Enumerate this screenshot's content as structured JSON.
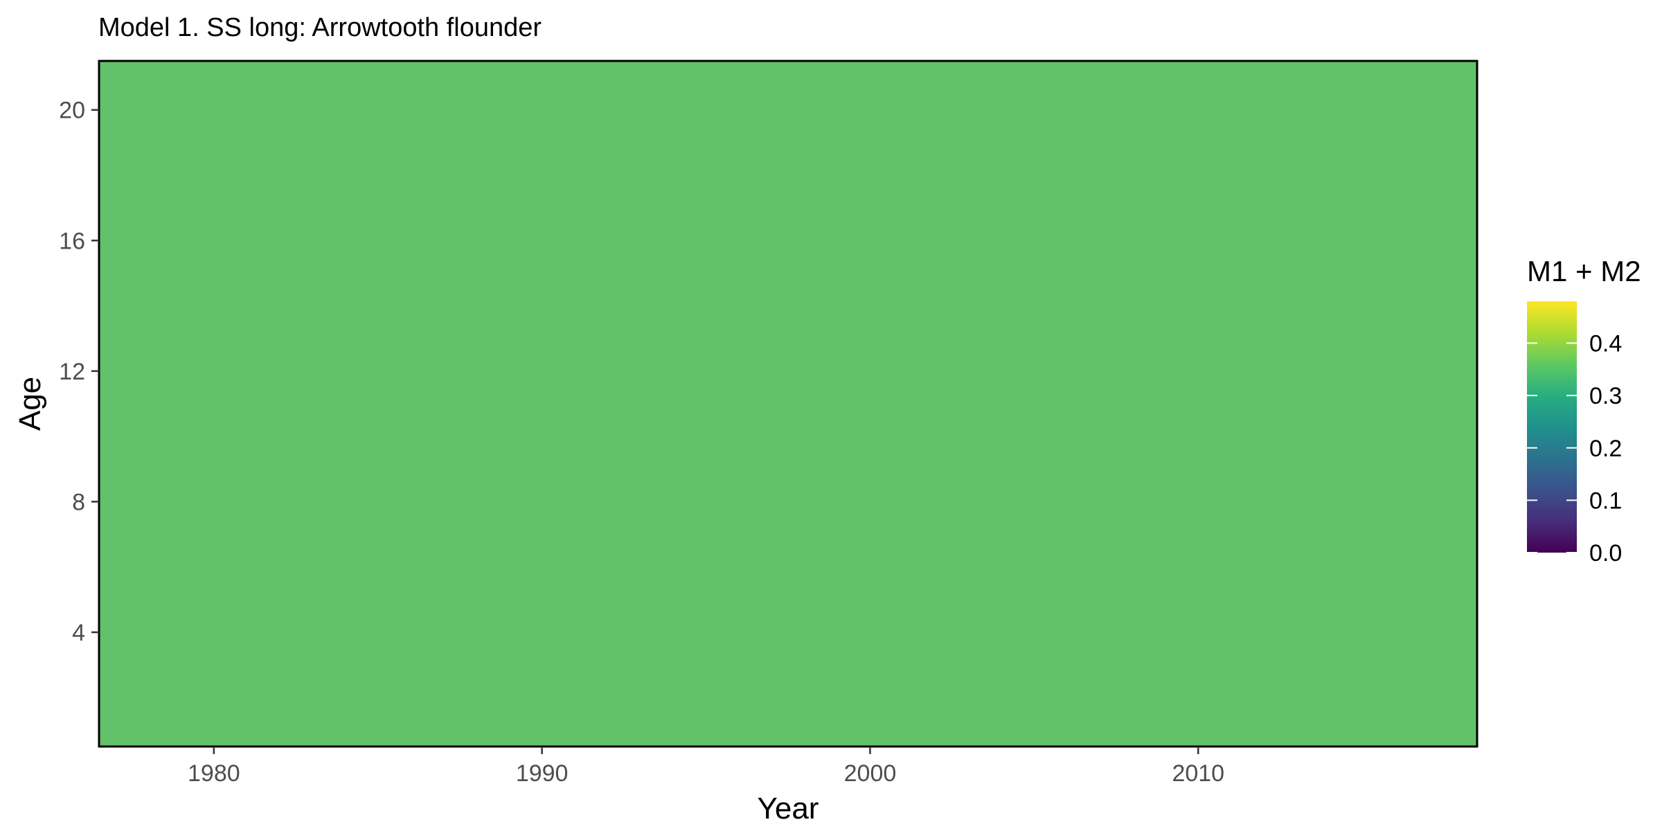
{
  "chart_data": {
    "type": "heatmap",
    "title": "Model 1. SS long: Arrowtooth flounder",
    "xlabel": "Year",
    "ylabel": "Age",
    "x_ticks": [
      1980,
      1990,
      2000,
      2010
    ],
    "y_ticks": [
      4,
      8,
      12,
      16,
      20
    ],
    "xlim": [
      1976.5,
      2018.5
    ],
    "ylim": [
      0.5,
      21.5
    ],
    "x_range": [
      1977,
      2018
    ],
    "y_range": [
      1,
      21
    ],
    "cell_value": 0.4,
    "cell_color": "#63c16a",
    "legend": {
      "title": "M1 + M2",
      "ticks": [
        0.0,
        0.1,
        0.2,
        0.3,
        0.4
      ],
      "tick_labels": [
        "0.0",
        "0.1",
        "0.2",
        "0.3",
        "0.4"
      ],
      "range": [
        0.0,
        0.48
      ],
      "colormap": "viridis",
      "placement": "right"
    },
    "grid": false
  }
}
